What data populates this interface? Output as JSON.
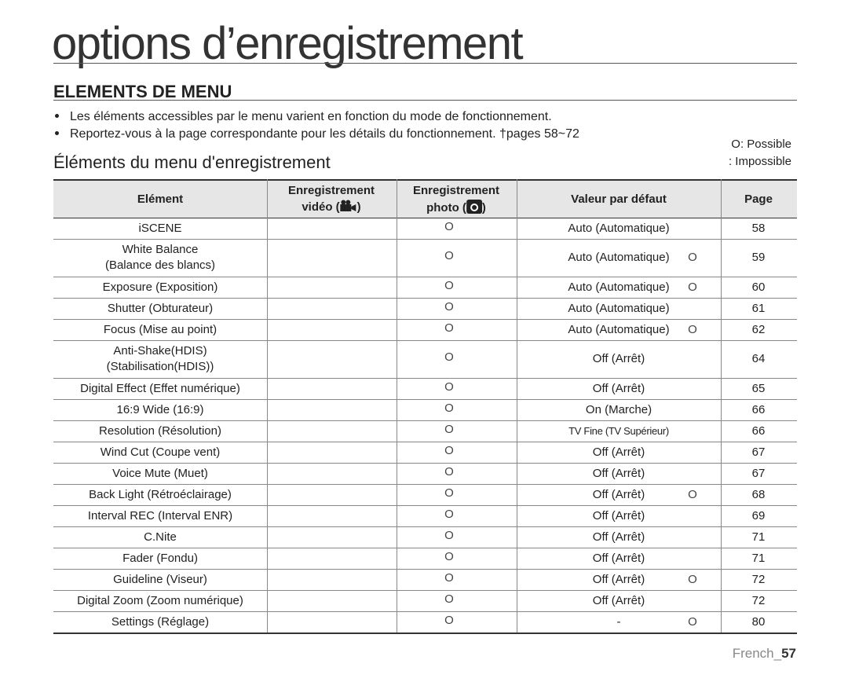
{
  "header": {
    "title": "options d’enregistrement",
    "section": "ELEMENTS DE MENU"
  },
  "bullets": [
    "Les éléments accessibles par le menu varient en fonction du mode de fonctionnement.",
    "Reportez-vous à la page correspondante pour les détails du fonctionnement. †pages 58~72"
  ],
  "legend": {
    "possible": "O: Possible",
    "impossible": ": Impossible"
  },
  "subtitle": "Éléments du menu d'enregistrement",
  "table": {
    "columns": {
      "element": "Elément",
      "video": {
        "line1": "Enregistrement",
        "before": "vidéo (",
        "after": ")"
      },
      "photo": {
        "line1": "Enregistrement",
        "before": "photo (",
        "after": ")"
      },
      "default": "Valeur par défaut",
      "page": "Page"
    },
    "rows": [
      {
        "element": [
          "iSCENE"
        ],
        "photo": "O",
        "default": "Auto (Automatique)",
        "page": "58"
      },
      {
        "element": [
          "White Balance",
          "(Balance des blancs)"
        ],
        "photo": "O",
        "default": "Auto (Automatique)",
        "default_mark": "O",
        "page": "59"
      },
      {
        "element": [
          "Exposure (Exposition)"
        ],
        "photo": "O",
        "default": "Auto (Automatique)",
        "default_mark": "O",
        "page": "60"
      },
      {
        "element": [
          "Shutter (Obturateur)"
        ],
        "photo": "O",
        "default": "Auto (Automatique)",
        "page": "61"
      },
      {
        "element": [
          "Focus (Mise au point)"
        ],
        "photo": "O",
        "default": "Auto (Automatique)",
        "default_mark": "O",
        "page": "62"
      },
      {
        "element": [
          "Anti-Shake(HDIS)",
          "(Stabilisation(HDIS))"
        ],
        "photo": "O",
        "default": "Off (Arrêt)",
        "page": "64"
      },
      {
        "element": [
          "Digital Effect (Effet numérique)"
        ],
        "photo": "O",
        "default": "Off (Arrêt)",
        "page": "65"
      },
      {
        "element": [
          "16:9 Wide (16:9)"
        ],
        "photo": "O",
        "default": "On (Marche)",
        "page": "66"
      },
      {
        "element": [
          "Resolution (Résolution)"
        ],
        "photo": "O",
        "default": "TV Fine (TV Supérieur)",
        "page": "66"
      },
      {
        "element": [
          "Wind Cut (Coupe vent)"
        ],
        "photo": "O",
        "default": "Off (Arrêt)",
        "page": "67"
      },
      {
        "element": [
          "Voice Mute (Muet)"
        ],
        "photo": "O",
        "default": "Off (Arrêt)",
        "page": "67"
      },
      {
        "element": [
          "Back Light (Rétroéclairage)"
        ],
        "photo": "O",
        "default": "Off (Arrêt)",
        "default_mark": "O",
        "page": "68"
      },
      {
        "element": [
          "Interval REC (Interval ENR)"
        ],
        "photo": "O",
        "default": "Off (Arrêt)",
        "page": "69"
      },
      {
        "element": [
          "C.Nite"
        ],
        "photo": "O",
        "default": "Off (Arrêt)",
        "page": "71"
      },
      {
        "element": [
          "Fader (Fondu)"
        ],
        "photo": "O",
        "default": "Off (Arrêt)",
        "page": "71"
      },
      {
        "element": [
          "Guideline (Viseur)"
        ],
        "photo": "O",
        "default": "Off (Arrêt)",
        "default_mark": "O",
        "page": "72"
      },
      {
        "element": [
          "Digital Zoom (Zoom numérique)"
        ],
        "photo": "O",
        "default": "Off (Arrêt)",
        "page": "72"
      },
      {
        "element": [
          "Settings (Réglage)"
        ],
        "photo": "O",
        "default": "-",
        "default_mark": "O",
        "page": "80"
      }
    ]
  },
  "footer": {
    "lang": "French_",
    "page": "57"
  }
}
